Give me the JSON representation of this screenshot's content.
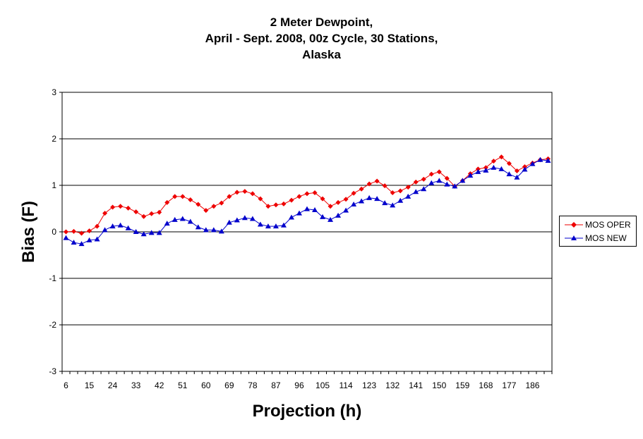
{
  "chart_data": {
    "type": "line",
    "title_lines": [
      "2 Meter Dewpoint,",
      "April - Sept. 2008, 00z Cycle, 30 Stations,",
      "Alaska"
    ],
    "xlabel": "Projection (h)",
    "ylabel": "Bias (F)",
    "ylim": [
      -3,
      3
    ],
    "yticks": [
      -3,
      -2,
      -1,
      0,
      1,
      2,
      3
    ],
    "xlim": [
      6,
      192
    ],
    "xtick_step": 3,
    "xtick_labels": [
      "6",
      "15",
      "24",
      "33",
      "42",
      "51",
      "60",
      "69",
      "78",
      "87",
      "96",
      "105",
      "114",
      "123",
      "132",
      "141",
      "150",
      "159",
      "168",
      "177",
      "186"
    ],
    "grid": "horizontal",
    "legend_position": "right",
    "x": [
      6,
      9,
      12,
      15,
      18,
      21,
      24,
      27,
      30,
      33,
      36,
      39,
      42,
      45,
      48,
      51,
      54,
      57,
      60,
      63,
      66,
      69,
      72,
      75,
      78,
      81,
      84,
      87,
      90,
      93,
      96,
      99,
      102,
      105,
      108,
      111,
      114,
      117,
      120,
      123,
      126,
      129,
      132,
      135,
      138,
      141,
      144,
      147,
      150,
      153,
      156,
      159,
      162,
      165,
      168,
      171,
      174,
      177,
      180,
      183,
      186,
      189,
      192
    ],
    "series": [
      {
        "name": "MOS OPER",
        "color": "#ee0000",
        "marker": "diamond",
        "values": [
          0.0,
          0.01,
          -0.03,
          0.02,
          0.12,
          0.4,
          0.53,
          0.55,
          0.51,
          0.43,
          0.33,
          0.39,
          0.42,
          0.63,
          0.76,
          0.76,
          0.69,
          0.59,
          0.46,
          0.55,
          0.62,
          0.76,
          0.85,
          0.87,
          0.82,
          0.71,
          0.55,
          0.58,
          0.6,
          0.68,
          0.76,
          0.82,
          0.84,
          0.71,
          0.55,
          0.63,
          0.7,
          0.83,
          0.92,
          1.03,
          1.09,
          0.99,
          0.84,
          0.88,
          0.96,
          1.07,
          1.13,
          1.24,
          1.29,
          1.15,
          0.98,
          1.1,
          1.25,
          1.35,
          1.38,
          1.52,
          1.61,
          1.47,
          1.31,
          1.4,
          1.48,
          1.55,
          1.57
        ]
      },
      {
        "name": "MOS NEW",
        "color": "#0000cc",
        "marker": "triangle",
        "values": [
          -0.13,
          -0.23,
          -0.26,
          -0.18,
          -0.16,
          0.04,
          0.12,
          0.14,
          0.08,
          0.0,
          -0.05,
          -0.02,
          -0.02,
          0.18,
          0.26,
          0.28,
          0.22,
          0.1,
          0.04,
          0.04,
          0.01,
          0.2,
          0.25,
          0.3,
          0.28,
          0.16,
          0.12,
          0.12,
          0.14,
          0.31,
          0.4,
          0.49,
          0.47,
          0.32,
          0.26,
          0.35,
          0.46,
          0.59,
          0.66,
          0.73,
          0.71,
          0.62,
          0.57,
          0.67,
          0.76,
          0.86,
          0.92,
          1.05,
          1.1,
          1.02,
          0.98,
          1.1,
          1.21,
          1.29,
          1.32,
          1.38,
          1.35,
          1.24,
          1.17,
          1.34,
          1.46,
          1.55,
          1.53
        ]
      }
    ]
  }
}
